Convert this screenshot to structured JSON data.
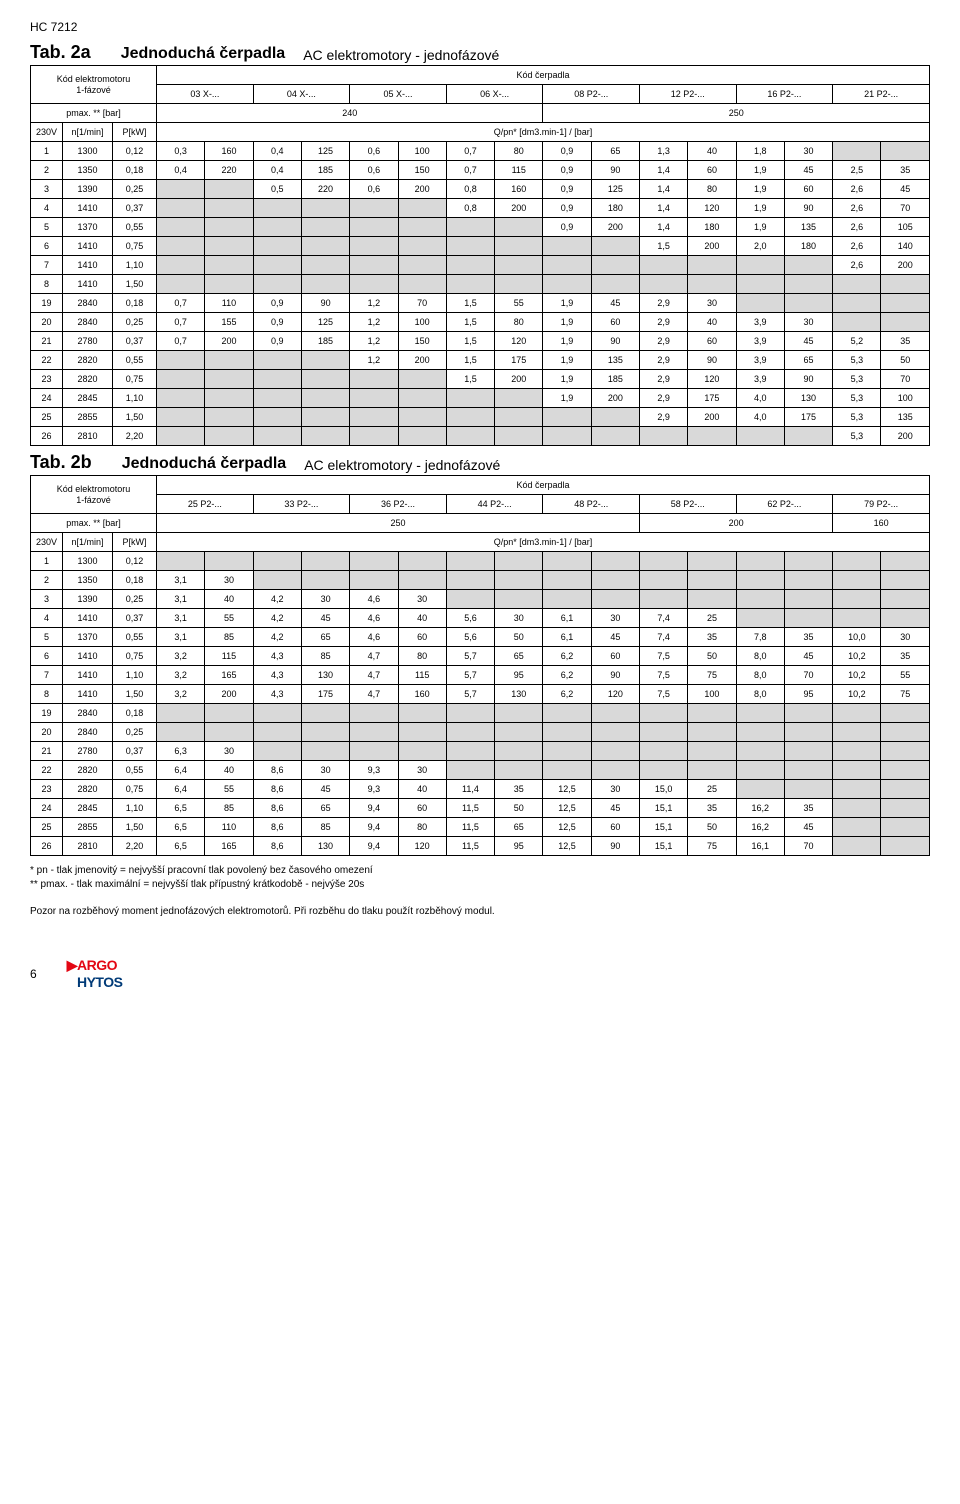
{
  "doc": "HC 7212",
  "tab2a": {
    "label": "Tab. 2a",
    "caption": "Jednoduchá čerpadla",
    "sub": "AC elektromotory - jednofázové",
    "motor_label": "Kód elektromotoru\n1-fázové",
    "pump_label": "Kód čerpadla",
    "pump_codes": [
      "03 X-...",
      "04 X-...",
      "05 X-...",
      "06 X-...",
      "08 P2-...",
      "12 P2-...",
      "16 P2-...",
      "21 P2-..."
    ],
    "pmax_label": "pmax. ** [bar]",
    "pmax_vals": [
      "240",
      "250"
    ],
    "v_label": "230V",
    "n_label": "n[1/min]",
    "p_label": "P[kW]",
    "q_label": "Q/pn* [dm3.min-1] / [bar]"
  },
  "tab2b": {
    "label": "Tab. 2b",
    "caption": "Jednoduchá čerpadla",
    "sub": "AC elektromotory - jednofázové",
    "motor_label": "Kód elektromotoru\n1-fázové",
    "pump_label": "Kód čerpadla",
    "pump_codes": [
      "25 P2-...",
      "33 P2-...",
      "36 P2-...",
      "44 P2-...",
      "48 P2-...",
      "58 P2-...",
      "62 P2-...",
      "79 P2-..."
    ],
    "pmax_label": "pmax. ** [bar]",
    "pmax_vals": [
      "250",
      "200",
      "160"
    ],
    "v_label": "230V",
    "n_label": "n[1/min]",
    "p_label": "P[kW]",
    "q_label": "Q/pn* [dm3.min-1] / [bar]"
  },
  "rows_a": [
    {
      "n": "1",
      "rpm": "1300",
      "kw": "0,12",
      "c": [
        "0,3",
        "160",
        "0,4",
        "125",
        "0,6",
        "100",
        "0,7",
        "80",
        "0,9",
        "65",
        "1,3",
        "40",
        "1,8",
        "30",
        "",
        ""
      ]
    },
    {
      "n": "2",
      "rpm": "1350",
      "kw": "0,18",
      "c": [
        "0,4",
        "220",
        "0,4",
        "185",
        "0,6",
        "150",
        "0,7",
        "115",
        "0,9",
        "90",
        "1,4",
        "60",
        "1,9",
        "45",
        "2,5",
        "35"
      ]
    },
    {
      "n": "3",
      "rpm": "1390",
      "kw": "0,25",
      "c": [
        "",
        "",
        "0,5",
        "220",
        "0,6",
        "200",
        "0,8",
        "160",
        "0,9",
        "125",
        "1,4",
        "80",
        "1,9",
        "60",
        "2,6",
        "45"
      ]
    },
    {
      "n": "4",
      "rpm": "1410",
      "kw": "0,37",
      "c": [
        "",
        "",
        "",
        "",
        "",
        "",
        "0,8",
        "200",
        "0,9",
        "180",
        "1,4",
        "120",
        "1,9",
        "90",
        "2,6",
        "70"
      ]
    },
    {
      "n": "5",
      "rpm": "1370",
      "kw": "0,55",
      "c": [
        "",
        "",
        "",
        "",
        "",
        "",
        "",
        "",
        "0,9",
        "200",
        "1,4",
        "180",
        "1,9",
        "135",
        "2,6",
        "105"
      ]
    },
    {
      "n": "6",
      "rpm": "1410",
      "kw": "0,75",
      "c": [
        "",
        "",
        "",
        "",
        "",
        "",
        "",
        "",
        "",
        "",
        "1,5",
        "200",
        "2,0",
        "180",
        "2,6",
        "140"
      ]
    },
    {
      "n": "7",
      "rpm": "1410",
      "kw": "1,10",
      "c": [
        "",
        "",
        "",
        "",
        "",
        "",
        "",
        "",
        "",
        "",
        "",
        "",
        "",
        "",
        "2,6",
        "200"
      ]
    },
    {
      "n": "8",
      "rpm": "1410",
      "kw": "1,50",
      "c": [
        "",
        "",
        "",
        "",
        "",
        "",
        "",
        "",
        "",
        "",
        "",
        "",
        "",
        "",
        "",
        " "
      ]
    },
    {
      "n": "19",
      "rpm": "2840",
      "kw": "0,18",
      "c": [
        "0,7",
        "110",
        "0,9",
        "90",
        "1,2",
        "70",
        "1,5",
        "55",
        "1,9",
        "45",
        "2,9",
        "30",
        "",
        "",
        "",
        ""
      ]
    },
    {
      "n": "20",
      "rpm": "2840",
      "kw": "0,25",
      "c": [
        "0,7",
        "155",
        "0,9",
        "125",
        "1,2",
        "100",
        "1,5",
        "80",
        "1,9",
        "60",
        "2,9",
        "40",
        "3,9",
        "30",
        "",
        ""
      ]
    },
    {
      "n": "21",
      "rpm": "2780",
      "kw": "0,37",
      "c": [
        "0,7",
        "200",
        "0,9",
        "185",
        "1,2",
        "150",
        "1,5",
        "120",
        "1,9",
        "90",
        "2,9",
        "60",
        "3,9",
        "45",
        "5,2",
        "35"
      ]
    },
    {
      "n": "22",
      "rpm": "2820",
      "kw": "0,55",
      "c": [
        "",
        "",
        "",
        "",
        "1,2",
        "200",
        "1,5",
        "175",
        "1,9",
        "135",
        "2,9",
        "90",
        "3,9",
        "65",
        "5,3",
        "50"
      ]
    },
    {
      "n": "23",
      "rpm": "2820",
      "kw": "0,75",
      "c": [
        "",
        "",
        "",
        "",
        "",
        "",
        "1,5",
        "200",
        "1,9",
        "185",
        "2,9",
        "120",
        "3,9",
        "90",
        "5,3",
        "70"
      ]
    },
    {
      "n": "24",
      "rpm": "2845",
      "kw": "1,10",
      "c": [
        "",
        "",
        "",
        "",
        "",
        "",
        "",
        "",
        "1,9",
        "200",
        "2,9",
        "175",
        "4,0",
        "130",
        "5,3",
        "100"
      ]
    },
    {
      "n": "25",
      "rpm": "2855",
      "kw": "1,50",
      "c": [
        "",
        "",
        "",
        "",
        "",
        "",
        "",
        "",
        "",
        "",
        "2,9",
        "200",
        "4,0",
        "175",
        "5,3",
        "135"
      ]
    },
    {
      "n": "26",
      "rpm": "2810",
      "kw": "2,20",
      "c": [
        "",
        "",
        "",
        "",
        "",
        "",
        "",
        "",
        "",
        "",
        "",
        "",
        "",
        "",
        "5,3",
        "200"
      ]
    }
  ],
  "rows_b": [
    {
      "n": "1",
      "rpm": "1300",
      "kw": "0,12",
      "c": [
        "",
        "",
        "",
        "",
        "",
        "",
        "",
        "",
        "",
        "",
        "",
        "",
        "",
        "",
        "",
        ""
      ]
    },
    {
      "n": "2",
      "rpm": "1350",
      "kw": "0,18",
      "c": [
        "3,1",
        "30",
        "",
        "",
        "",
        "",
        "",
        "",
        "",
        "",
        "",
        "",
        "",
        "",
        "",
        ""
      ]
    },
    {
      "n": "3",
      "rpm": "1390",
      "kw": "0,25",
      "c": [
        "3,1",
        "40",
        "4,2",
        "30",
        "4,6",
        "30",
        "",
        "",
        "",
        "",
        "",
        "",
        "",
        "",
        "",
        ""
      ]
    },
    {
      "n": "4",
      "rpm": "1410",
      "kw": "0,37",
      "c": [
        "3,1",
        "55",
        "4,2",
        "45",
        "4,6",
        "40",
        "5,6",
        "30",
        "6,1",
        "30",
        "7,4",
        "25",
        "",
        "",
        "",
        ""
      ]
    },
    {
      "n": "5",
      "rpm": "1370",
      "kw": "0,55",
      "c": [
        "3,1",
        "85",
        "4,2",
        "65",
        "4,6",
        "60",
        "5,6",
        "50",
        "6,1",
        "45",
        "7,4",
        "35",
        "7,8",
        "35",
        "10,0",
        "30"
      ]
    },
    {
      "n": "6",
      "rpm": "1410",
      "kw": "0,75",
      "c": [
        "3,2",
        "115",
        "4,3",
        "85",
        "4,7",
        "80",
        "5,7",
        "65",
        "6,2",
        "60",
        "7,5",
        "50",
        "8,0",
        "45",
        "10,2",
        "35"
      ]
    },
    {
      "n": "7",
      "rpm": "1410",
      "kw": "1,10",
      "c": [
        "3,2",
        "165",
        "4,3",
        "130",
        "4,7",
        "115",
        "5,7",
        "95",
        "6,2",
        "90",
        "7,5",
        "75",
        "8,0",
        "70",
        "10,2",
        "55"
      ]
    },
    {
      "n": "8",
      "rpm": "1410",
      "kw": "1,50",
      "c": [
        "3,2",
        "200",
        "4,3",
        "175",
        "4,7",
        "160",
        "5,7",
        "130",
        "6,2",
        "120",
        "7,5",
        "100",
        "8,0",
        "95",
        "10,2",
        "75"
      ]
    },
    {
      "n": "19",
      "rpm": "2840",
      "kw": "0,18",
      "c": [
        "",
        "",
        "",
        "",
        "",
        "",
        "",
        "",
        "",
        "",
        "",
        "",
        "",
        "",
        "",
        ""
      ]
    },
    {
      "n": "20",
      "rpm": "2840",
      "kw": "0,25",
      "c": [
        "",
        "",
        "",
        "",
        "",
        "",
        "",
        "",
        "",
        "",
        "",
        "",
        "",
        "",
        "",
        ""
      ]
    },
    {
      "n": "21",
      "rpm": "2780",
      "kw": "0,37",
      "c": [
        "6,3",
        "30",
        "",
        "",
        "",
        "",
        "",
        "",
        "",
        "",
        "",
        "",
        "",
        "",
        "",
        ""
      ]
    },
    {
      "n": "22",
      "rpm": "2820",
      "kw": "0,55",
      "c": [
        "6,4",
        "40",
        "8,6",
        "30",
        "9,3",
        "30",
        "",
        "",
        "",
        "",
        "",
        "",
        "",
        "",
        "",
        ""
      ]
    },
    {
      "n": "23",
      "rpm": "2820",
      "kw": "0,75",
      "c": [
        "6,4",
        "55",
        "8,6",
        "45",
        "9,3",
        "40",
        "11,4",
        "35",
        "12,5",
        "30",
        "15,0",
        "25",
        "",
        "",
        "",
        ""
      ]
    },
    {
      "n": "24",
      "rpm": "2845",
      "kw": "1,10",
      "c": [
        "6,5",
        "85",
        "8,6",
        "65",
        "9,4",
        "60",
        "11,5",
        "50",
        "12,5",
        "45",
        "15,1",
        "35",
        "16,2",
        "35",
        "",
        ""
      ]
    },
    {
      "n": "25",
      "rpm": "2855",
      "kw": "1,50",
      "c": [
        "6,5",
        "110",
        "8,6",
        "85",
        "9,4",
        "80",
        "11,5",
        "65",
        "12,5",
        "60",
        "15,1",
        "50",
        "16,2",
        "45",
        "",
        ""
      ]
    },
    {
      "n": "26",
      "rpm": "2810",
      "kw": "2,20",
      "c": [
        "6,5",
        "165",
        "8,6",
        "130",
        "9,4",
        "120",
        "11,5",
        "95",
        "12,5",
        "90",
        "15,1",
        "75",
        "16,1",
        "70",
        "",
        ""
      ]
    }
  ],
  "fn1": "* pn - tlak jmenovitý = nejvyšší pracovní tlak povolený bez časového omezení",
  "fn2": "** pmax. - tlak maximální = nejvyšší tlak přípustný krátkodobě - nejvýše 20s",
  "warn": "Pozor na rozběhový moment jednofázových elektromotorů. Při rozběhu do tlaku použít rozběhový modul.",
  "page": "6",
  "logo_a": "ARGO",
  "logo_h": "HYTOS"
}
